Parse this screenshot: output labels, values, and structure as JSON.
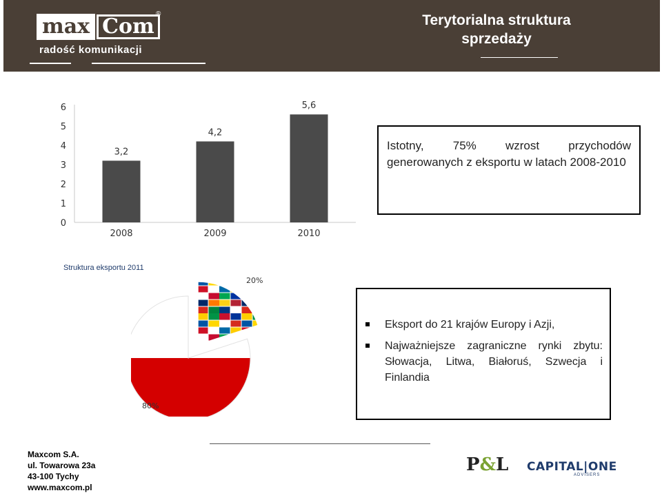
{
  "header": {
    "logo_max": "max",
    "logo_com": "Com",
    "logo_registered": "®",
    "logo_tagline": "radość komunikacji",
    "title": "Terytorialna struktura sprzedaży",
    "background": "#4a3f36"
  },
  "chart_data": [
    {
      "type": "bar",
      "categories": [
        "2008",
        "2009",
        "2010"
      ],
      "values": [
        3.2,
        4.2,
        5.6
      ],
      "data_labels": [
        "3,2",
        "4,2",
        "5,6"
      ],
      "ylim": [
        0,
        6
      ],
      "yticks": [
        "0",
        "1",
        "2",
        "3",
        "4",
        "5",
        "6"
      ],
      "title": "",
      "xlabel": "",
      "ylabel": "",
      "grid": false,
      "bar_color": "#4a4a4a"
    },
    {
      "type": "pie",
      "title": "Struktura eksportu 2011",
      "slices": [
        {
          "value": 80,
          "label": "80%",
          "color": "Polish flag (white/red)"
        },
        {
          "value": 20,
          "label": "20%",
          "color": "flags of Europe and Asia"
        }
      ]
    }
  ],
  "box1": {
    "text": "Istotny, 75% wzrost przychodów generowanych z eksportu w latach 2008-2010"
  },
  "box2": {
    "bullets": [
      "Eksport do 21 krajów Europy i Azji,",
      "Najważniejsze zagraniczne rynki zbytu: Słowacja, Litwa, Białoruś, Szwecja i Finlandia"
    ]
  },
  "footer": {
    "company": "Maxcom S.A.",
    "street": "ul. Towarowa 23a",
    "city": "43-100 Tychy",
    "website": "www.maxcom.pl",
    "partner1_p": "P",
    "partner1_amp": "&",
    "partner1_l": "L",
    "partner2": "CAPITAL|ONE",
    "partner2_sub": "ADVISERS"
  }
}
